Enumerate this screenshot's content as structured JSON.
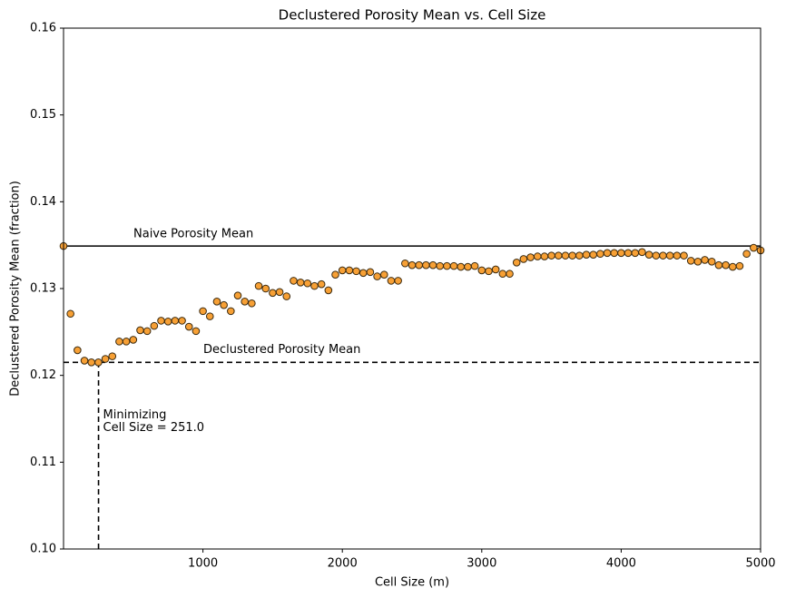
{
  "chart_data": {
    "type": "scatter",
    "title": "Declustered Porosity Mean vs. Cell Size",
    "x_label": "Cell Size (m)",
    "y_label": "Declustered Porosity Mean (fraction)",
    "xlim": [
      0,
      5000
    ],
    "ylim": [
      0.1,
      0.16
    ],
    "xticks": [
      1000,
      2000,
      3000,
      4000,
      5000
    ],
    "yticks": [
      {
        "value": 0.1,
        "label": "0.10"
      },
      0.11,
      0.12,
      0.13,
      0.14,
      0.15,
      0.16
    ],
    "grid": false,
    "series": [
      {
        "color": "#f7a035",
        "x": [
          0,
          50,
          100,
          150,
          200,
          250,
          300,
          350,
          400,
          450,
          500,
          550,
          600,
          650,
          700,
          750,
          800,
          850,
          900,
          950,
          1000,
          1050,
          1100,
          1150,
          1200,
          1250,
          1300,
          1350,
          1400,
          1450,
          1500,
          1550,
          1600,
          1650,
          1700,
          1750,
          1800,
          1850,
          1900,
          1950,
          2000,
          2050,
          2100,
          2150,
          2200,
          2250,
          2300,
          2350,
          2400,
          2450,
          2500,
          2550,
          2600,
          2650,
          2700,
          2750,
          2800,
          2850,
          2900,
          2950,
          3000,
          3050,
          3100,
          3150,
          3200,
          3250,
          3300,
          3350,
          3400,
          3450,
          3500,
          3550,
          3600,
          3650,
          3700,
          3750,
          3800,
          3850,
          3900,
          3950,
          4000,
          4050,
          4100,
          4150,
          4200,
          4250,
          4300,
          4350,
          4400,
          4450,
          4500,
          4550,
          4600,
          4650,
          4700,
          4750,
          4800,
          4850,
          4900,
          4950,
          5000
        ],
        "values": [
          0.1349,
          0.1271,
          0.1229,
          0.1217,
          0.1215,
          0.1215,
          0.1219,
          0.1222,
          0.1239,
          0.1239,
          0.1241,
          0.1252,
          0.1251,
          0.1257,
          0.1263,
          0.1262,
          0.1263,
          0.1263,
          0.1256,
          0.1251,
          0.1274,
          0.1268,
          0.1285,
          0.1281,
          0.1274,
          0.1292,
          0.1285,
          0.1283,
          0.1303,
          0.13,
          0.1295,
          0.1296,
          0.1291,
          0.1309,
          0.1307,
          0.1306,
          0.1303,
          0.1305,
          0.1298,
          0.1316,
          0.1321,
          0.1321,
          0.132,
          0.1318,
          0.1319,
          0.1314,
          0.1316,
          0.1309,
          0.1309,
          0.1329,
          0.1327,
          0.1327,
          0.1327,
          0.1327,
          0.1326,
          0.1326,
          0.1326,
          0.1325,
          0.1325,
          0.1326,
          0.1321,
          0.132,
          0.1322,
          0.1317,
          0.1317,
          0.133,
          0.1334,
          0.1336,
          0.1337,
          0.1337,
          0.1338,
          0.1338,
          0.1338,
          0.1338,
          0.1338,
          0.1339,
          0.1339,
          0.134,
          0.1341,
          0.1341,
          0.1341,
          0.1341,
          0.1341,
          0.1342,
          0.1339,
          0.1338,
          0.1338,
          0.1338,
          0.1338,
          0.1338,
          0.1332,
          0.1331,
          0.1333,
          0.1331,
          0.1327,
          0.1327,
          0.1325,
          0.1326,
          0.134,
          0.1347,
          0.1344
        ]
      }
    ],
    "naive_mean": {
      "value": 0.1349,
      "label": "Naive Porosity Mean"
    },
    "declustered_mean": {
      "value": 0.1215,
      "label": "Declustered Porosity Mean"
    },
    "minimizing_cell_size": {
      "value": 251.0,
      "label_lines": [
        "Minimizing",
        "Cell Size = 251.0"
      ]
    }
  }
}
